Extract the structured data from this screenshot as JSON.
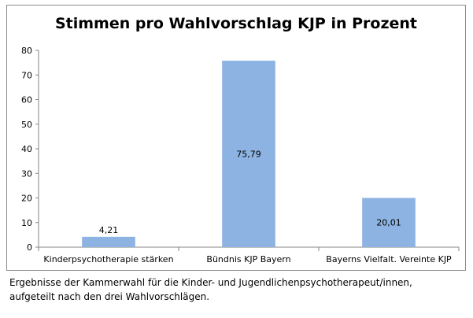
{
  "chart_data": {
    "type": "bar",
    "title": "Stimmen pro Wahlvorschlag KJP in Prozent",
    "categories": [
      "Kinderpsychotherapie stärken",
      "Bündnis KJP Bayern",
      "Bayerns Vielfalt. Vereinte KJP"
    ],
    "values": [
      4.21,
      75.79,
      20.01
    ],
    "data_labels": [
      "4,21",
      "75,79",
      "20,01"
    ],
    "xlabel": "",
    "ylabel": "",
    "ylim": [
      0,
      80
    ],
    "yticks": [
      0,
      10,
      20,
      30,
      40,
      50,
      60,
      70,
      80
    ],
    "grid": false,
    "legend": "none",
    "bar_color": "#8db3e2"
  },
  "caption": {
    "line1": "Ergebnisse der Kammerwahl für die Kinder- und Jugendlichenpsychotherapeut/innen,",
    "line2": "aufgeteilt nach den drei Wahlvorschlägen."
  }
}
